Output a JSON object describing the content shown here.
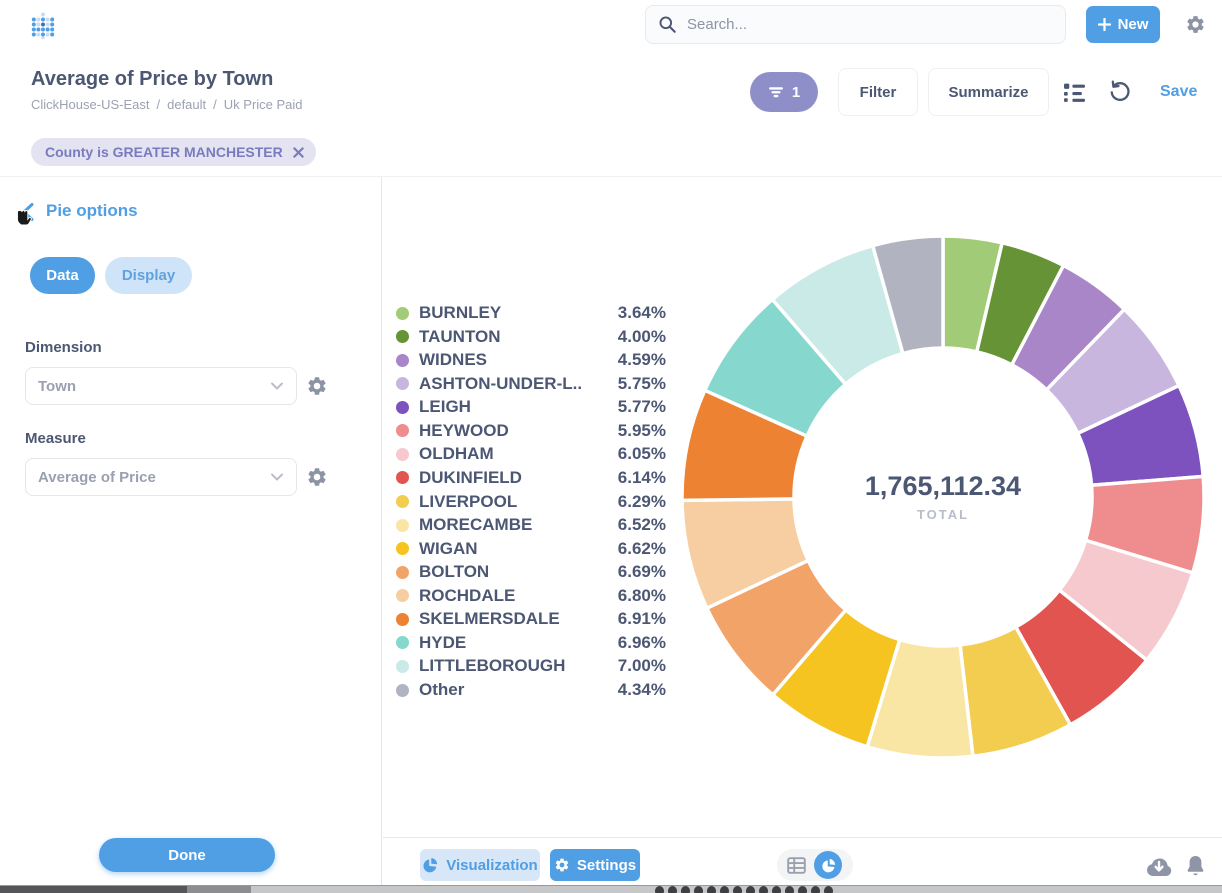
{
  "app": {
    "logo_icon": "metabase-dots-logo",
    "search_placeholder": "Search...",
    "new_button": "New",
    "settings_icon": "gear-icon"
  },
  "question_header": {
    "title": "Average of Price by Town",
    "breadcrumb": {
      "database": "ClickHouse-US-East",
      "schema": "default",
      "table": "Uk Price Paid",
      "separator": "/"
    },
    "filter_pill_count": "1",
    "filter_button": "Filter",
    "summarize_button": "Summarize",
    "save_button": "Save"
  },
  "filters": {
    "chip_label": "County is GREATER MANCHESTER"
  },
  "sidebar": {
    "title": "Pie options",
    "tab_data": "Data",
    "tab_display": "Display",
    "dimension_label": "Dimension",
    "dimension_value": "Town",
    "measure_label": "Measure",
    "measure_value": "Average of Price",
    "done_button": "Done"
  },
  "footer": {
    "visualization_button": "Visualization",
    "settings_button": "Settings"
  },
  "chart_data": {
    "type": "pie",
    "title": "Average of Price by Town",
    "donut": true,
    "start_angle_deg": 0,
    "direction": "clockwise",
    "legend_position": "left",
    "total_value": "1,765,112.34",
    "total_label": "TOTAL",
    "slices": [
      {
        "label": "BURNLEY",
        "pct": 3.64,
        "color": "#A2CB77"
      },
      {
        "label": "TAUNTON",
        "pct": 4.0,
        "color": "#669336"
      },
      {
        "label": "WIDNES",
        "pct": 4.59,
        "color": "#A886C8"
      },
      {
        "label": "ASHTON-UNDER-L..",
        "pct": 5.75,
        "color": "#C9B6DF"
      },
      {
        "label": "LEIGH",
        "pct": 5.77,
        "color": "#7D52BE"
      },
      {
        "label": "HEYWOOD",
        "pct": 5.95,
        "color": "#EE8C8E"
      },
      {
        "label": "OLDHAM",
        "pct": 6.05,
        "color": "#F5C9CE"
      },
      {
        "label": "DUKINFIELD",
        "pct": 6.14,
        "color": "#E25450"
      },
      {
        "label": "LIVERPOOL",
        "pct": 6.29,
        "color": "#F3CD4F"
      },
      {
        "label": "MORECAMBE",
        "pct": 6.52,
        "color": "#FAE6A4"
      },
      {
        "label": "WIGAN",
        "pct": 6.62,
        "color": "#F5C421"
      },
      {
        "label": "BOLTON",
        "pct": 6.69,
        "color": "#F2A368"
      },
      {
        "label": "ROCHDALE",
        "pct": 6.8,
        "color": "#F6CEA2"
      },
      {
        "label": "SKELMERSDALE",
        "pct": 6.91,
        "color": "#ED8232"
      },
      {
        "label": "HYDE",
        "pct": 6.96,
        "color": "#86D7CD"
      },
      {
        "label": "LITTLEBOROUGH",
        "pct": 7.0,
        "color": "#C9EAE6"
      },
      {
        "label": "Other",
        "pct": 4.34,
        "color": "#B1B4C0"
      }
    ]
  },
  "colors": {
    "accent_blue": "#509EE3",
    "text_dark": "#4C5773",
    "text_muted": "#9BA2B1",
    "filter_pill_purple": "#8E8FC9",
    "chip_bg": "#E3E3F2",
    "chip_text": "#7A7BBE"
  }
}
